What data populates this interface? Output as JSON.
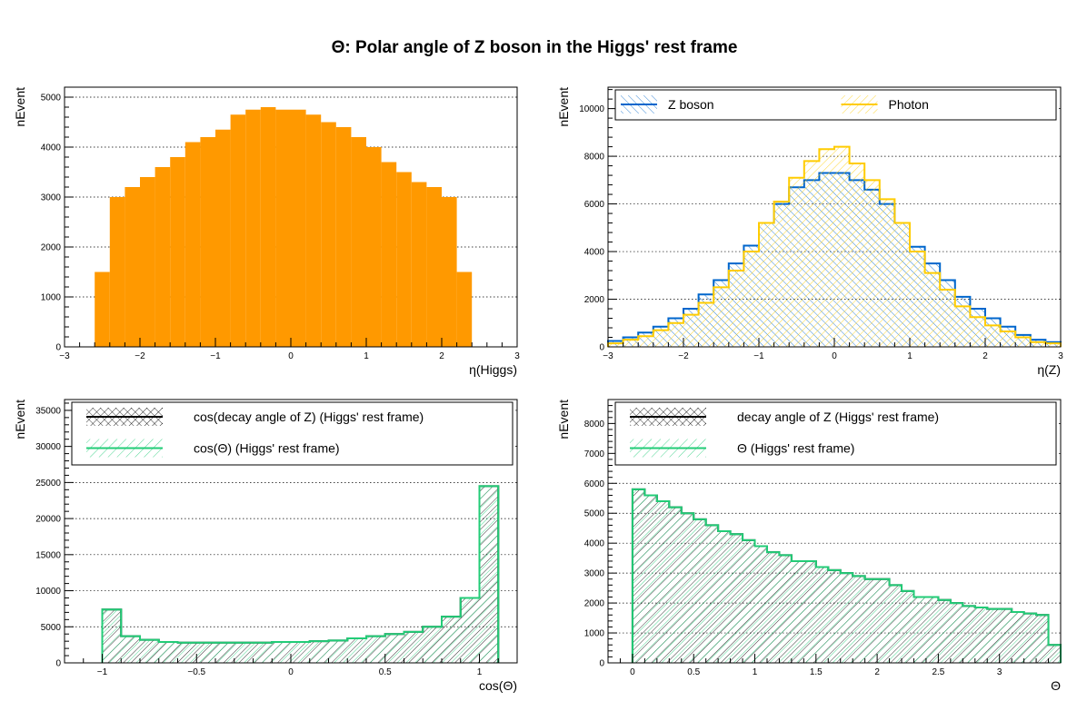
{
  "page": {
    "title": "Θ: Polar angle of Z boson in the Higgs' rest frame"
  },
  "colors": {
    "orange": "#ff9900",
    "blue": "#0066cc",
    "yellow": "#ffcc00",
    "green": "#22cc77",
    "black": "#000000"
  },
  "chart_data": [
    {
      "type": "bar",
      "xlabel": "η(Higgs)",
      "ylabel": "nEvent",
      "xlim": [
        -3,
        3
      ],
      "ylim": [
        0,
        5200
      ],
      "xticks": [
        -3,
        -2,
        -1,
        0,
        1,
        2,
        3
      ],
      "yticks": [
        0,
        1000,
        2000,
        3000,
        4000,
        5000
      ],
      "grid": "horizontal dotted",
      "bins": {
        "min": -3.0,
        "width": 0.2
      },
      "series": [
        {
          "style": "filled",
          "color": "#ff9900",
          "values": [
            0,
            0,
            1500,
            3000,
            3200,
            3400,
            3600,
            3800,
            4100,
            4200,
            4350,
            4650,
            4750,
            4800,
            4750,
            4750,
            4650,
            4500,
            4400,
            4200,
            4000,
            3700,
            3500,
            3300,
            3200,
            3000,
            1500,
            0,
            0,
            0
          ]
        }
      ]
    },
    {
      "type": "bar",
      "xlabel": "η(Z)",
      "ylabel": "nEvent",
      "xlim": [
        -3,
        3
      ],
      "ylim": [
        0,
        10900
      ],
      "xticks": [
        -3,
        -2,
        -1,
        0,
        1,
        2,
        3
      ],
      "yticks": [
        0,
        2000,
        4000,
        6000,
        8000,
        10000
      ],
      "grid": "horizontal dotted",
      "legend_position": "top",
      "bins": {
        "min": -3.0,
        "width": 0.2
      },
      "series": [
        {
          "name": "Z boson",
          "style": "hatched-step",
          "color": "#0066cc",
          "values": [
            250,
            400,
            600,
            850,
            1200,
            1600,
            2200,
            2800,
            3500,
            4250,
            5200,
            6000,
            6700,
            7000,
            7300,
            7300,
            7000,
            6600,
            6000,
            5200,
            4200,
            3500,
            2800,
            2100,
            1600,
            1200,
            850,
            500,
            300,
            200
          ]
        },
        {
          "name": "Photon",
          "style": "hatched-step",
          "color": "#ffcc00",
          "values": [
            150,
            300,
            450,
            700,
            1000,
            1350,
            1850,
            2500,
            3200,
            4000,
            5200,
            6100,
            7100,
            7800,
            8300,
            8400,
            7700,
            7000,
            6200,
            5200,
            4000,
            3100,
            2400,
            1700,
            1250,
            900,
            650,
            400,
            200,
            150
          ]
        }
      ]
    },
    {
      "type": "bar",
      "xlabel": "cos(Θ)",
      "ylabel": "nEvent",
      "xlim": [
        -1.2,
        1.2
      ],
      "ylim": [
        0,
        36500
      ],
      "xticks": [
        -1,
        -0.5,
        0,
        0.5,
        1
      ],
      "xticklabels": [
        "−1",
        "−0.5",
        "0",
        "0.5",
        "1"
      ],
      "yticks": [
        0,
        5000,
        10000,
        15000,
        20000,
        25000,
        30000,
        35000
      ],
      "grid": "horizontal dotted",
      "legend_position": "top",
      "bins": {
        "min": -1.0,
        "width": 0.1
      },
      "series": [
        {
          "name": "cos(decay angle of Z) (Higgs' rest frame)",
          "style": "hatched-step",
          "color": "#000000",
          "values": [
            7400,
            3700,
            3200,
            2900,
            2800,
            2800,
            2800,
            2800,
            2800,
            2900,
            2900,
            3000,
            3100,
            3400,
            3700,
            4000,
            4300,
            5000,
            6400,
            9000,
            24500
          ]
        },
        {
          "name": "cos(Θ) (Higgs' rest frame)",
          "style": "hatched-step",
          "color": "#22cc77",
          "values": [
            7400,
            3700,
            3200,
            2900,
            2800,
            2800,
            2800,
            2800,
            2800,
            2900,
            2900,
            3000,
            3100,
            3400,
            3700,
            4000,
            4300,
            5000,
            6400,
            9000,
            24500
          ]
        }
      ]
    },
    {
      "type": "bar",
      "xlabel": "Θ",
      "ylabel": "nEvent",
      "xlim": [
        -0.2,
        3.5
      ],
      "ylim": [
        0,
        8800
      ],
      "xticks": [
        0,
        0.5,
        1,
        1.5,
        2,
        2.5,
        3
      ],
      "xticklabels": [
        "0",
        "0.5",
        "1",
        "1.5",
        "2",
        "2.5",
        "3"
      ],
      "yticks": [
        0,
        1000,
        2000,
        3000,
        4000,
        5000,
        6000,
        7000,
        8000
      ],
      "grid": "horizontal dotted",
      "legend_position": "top",
      "bins": {
        "min": 0.0,
        "width": 0.1
      },
      "series": [
        {
          "name": "decay angle of Z (Higgs' rest frame)",
          "style": "hatched-step",
          "color": "#000000",
          "values": [
            5800,
            5600,
            5400,
            5200,
            5000,
            4800,
            4600,
            4400,
            4300,
            4100,
            3900,
            3700,
            3600,
            3400,
            3400,
            3200,
            3100,
            3000,
            2900,
            2800,
            2800,
            2600,
            2400,
            2200,
            2200,
            2100,
            2000,
            1900,
            1850,
            1800,
            1800,
            1700,
            1650,
            1600,
            600
          ]
        },
        {
          "name": "Θ (Higgs' rest frame)",
          "style": "hatched-step",
          "color": "#22cc77",
          "values": [
            5800,
            5600,
            5400,
            5200,
            5000,
            4800,
            4600,
            4400,
            4300,
            4100,
            3900,
            3700,
            3600,
            3400,
            3400,
            3200,
            3100,
            3000,
            2900,
            2800,
            2800,
            2600,
            2400,
            2200,
            2200,
            2100,
            2000,
            1900,
            1850,
            1800,
            1800,
            1700,
            1650,
            1600,
            600
          ]
        }
      ]
    }
  ]
}
